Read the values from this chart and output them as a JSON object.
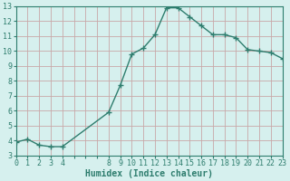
{
  "x": [
    0,
    1,
    2,
    3,
    4,
    8,
    9,
    10,
    11,
    12,
    13,
    14,
    15,
    16,
    17,
    18,
    19,
    20,
    21,
    22,
    23
  ],
  "y": [
    3.9,
    4.1,
    3.7,
    3.6,
    3.6,
    5.9,
    7.7,
    9.8,
    10.2,
    11.1,
    12.9,
    12.9,
    12.3,
    11.7,
    11.1,
    11.1,
    10.9,
    10.1,
    10.0,
    9.9,
    9.5
  ],
  "line_color": "#2e7d6e",
  "bg_color": "#d6f0ee",
  "grid_color": "#c8a8a8",
  "xlabel": "Humidex (Indice chaleur)",
  "xlim": [
    0,
    23
  ],
  "ylim": [
    3,
    13
  ],
  "all_xticks": [
    0,
    1,
    2,
    3,
    4,
    5,
    6,
    7,
    8,
    9,
    10,
    11,
    12,
    13,
    14,
    15,
    16,
    17,
    18,
    19,
    20,
    21,
    22,
    23
  ],
  "labeled_xticks": [
    0,
    1,
    2,
    3,
    4,
    8,
    9,
    10,
    11,
    12,
    13,
    14,
    15,
    16,
    17,
    18,
    19,
    20,
    21,
    22,
    23
  ],
  "yticks": [
    3,
    4,
    5,
    6,
    7,
    8,
    9,
    10,
    11,
    12,
    13
  ],
  "label_fontsize": 7,
  "tick_fontsize": 6
}
